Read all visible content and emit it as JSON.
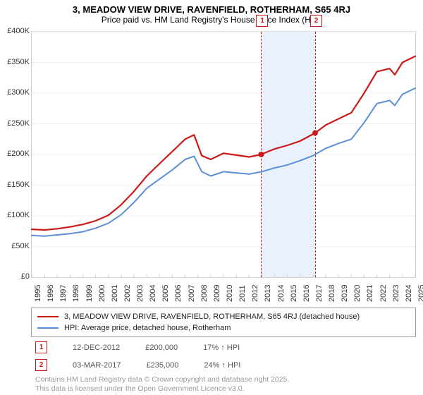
{
  "header": {
    "title": "3, MEADOW VIEW DRIVE, RAVENFIELD, ROTHERHAM, S65 4RJ",
    "subtitle": "Price paid vs. HM Land Registry's House Price Index (HPI)"
  },
  "chart": {
    "type": "line",
    "background_color": "#ffffff",
    "grid_color": "#cfcfcf",
    "plot_border_color": "#cfcfcf",
    "axis_font_size": 11,
    "axis_font_color": "#333333",
    "title_fontsize": 13,
    "subtitle_fontsize": 12,
    "ylim": [
      0,
      400000
    ],
    "ytick_step": 50000,
    "y_ticks": [
      "£0",
      "£50K",
      "£100K",
      "£150K",
      "£200K",
      "£250K",
      "£300K",
      "£350K",
      "£400K"
    ],
    "xlim": [
      1995,
      2025
    ],
    "xtick_step": 1,
    "x_ticks": [
      "1995",
      "1996",
      "1997",
      "1998",
      "1999",
      "2000",
      "2001",
      "2002",
      "2003",
      "2004",
      "2005",
      "2006",
      "2007",
      "2008",
      "2009",
      "2010",
      "2011",
      "2012",
      "2013",
      "2014",
      "2015",
      "2016",
      "2017",
      "2018",
      "2019",
      "2020",
      "2021",
      "2022",
      "2023",
      "2024",
      "2025"
    ],
    "series": [
      {
        "key": "price_paid",
        "label": "3, MEADOW VIEW DRIVE, RAVENFIELD, ROTHERHAM, S65 4RJ (detached house)",
        "color": "#cc1a1a",
        "line_width": 2.2,
        "data": [
          [
            1995,
            78000
          ],
          [
            1996,
            77000
          ],
          [
            1997,
            79000
          ],
          [
            1998,
            82000
          ],
          [
            1999,
            86000
          ],
          [
            2000,
            92000
          ],
          [
            2001,
            101000
          ],
          [
            2002,
            118000
          ],
          [
            2003,
            140000
          ],
          [
            2004,
            165000
          ],
          [
            2005,
            185000
          ],
          [
            2006,
            205000
          ],
          [
            2007,
            225000
          ],
          [
            2007.7,
            232000
          ],
          [
            2008.3,
            198000
          ],
          [
            2009,
            192000
          ],
          [
            2010,
            202000
          ],
          [
            2011,
            199000
          ],
          [
            2012,
            196000
          ],
          [
            2012.95,
            200000
          ],
          [
            2013.5,
            205000
          ],
          [
            2014,
            209000
          ],
          [
            2015,
            215000
          ],
          [
            2016,
            222000
          ],
          [
            2017.17,
            235000
          ],
          [
            2018,
            248000
          ],
          [
            2019,
            258000
          ],
          [
            2020,
            268000
          ],
          [
            2021,
            300000
          ],
          [
            2022,
            335000
          ],
          [
            2023,
            340000
          ],
          [
            2023.4,
            330000
          ],
          [
            2024,
            350000
          ],
          [
            2025,
            360000
          ]
        ]
      },
      {
        "key": "hpi",
        "label": "HPI: Average price, detached house, Rotherham",
        "color": "#5b8fd6",
        "line_width": 2,
        "data": [
          [
            1995,
            68000
          ],
          [
            1996,
            67000
          ],
          [
            1997,
            69000
          ],
          [
            1998,
            71000
          ],
          [
            1999,
            74000
          ],
          [
            2000,
            80000
          ],
          [
            2001,
            88000
          ],
          [
            2002,
            102000
          ],
          [
            2003,
            122000
          ],
          [
            2004,
            145000
          ],
          [
            2005,
            160000
          ],
          [
            2006,
            175000
          ],
          [
            2007,
            192000
          ],
          [
            2007.7,
            197000
          ],
          [
            2008.3,
            172000
          ],
          [
            2009,
            165000
          ],
          [
            2010,
            172000
          ],
          [
            2011,
            170000
          ],
          [
            2012,
            168000
          ],
          [
            2013,
            172000
          ],
          [
            2014,
            178000
          ],
          [
            2015,
            183000
          ],
          [
            2016,
            190000
          ],
          [
            2017,
            198000
          ],
          [
            2018,
            210000
          ],
          [
            2019,
            218000
          ],
          [
            2020,
            225000
          ],
          [
            2021,
            252000
          ],
          [
            2022,
            283000
          ],
          [
            2023,
            288000
          ],
          [
            2023.4,
            280000
          ],
          [
            2024,
            298000
          ],
          [
            2025,
            308000
          ]
        ]
      }
    ],
    "markers": [
      {
        "series": "price_paid",
        "x": 2012.95,
        "y": 200000,
        "color": "#cc1a1a",
        "radius": 4
      },
      {
        "series": "price_paid",
        "x": 2017.17,
        "y": 235000,
        "color": "#cc1a1a",
        "radius": 4
      }
    ],
    "plot_bands": [
      {
        "from": 2012.95,
        "to": 2017.17,
        "fill": "#e9f1fc"
      }
    ],
    "plot_lines": [
      {
        "x": 2012.95,
        "color": "#cc1a1a",
        "dash": "3,3",
        "badge": "1"
      },
      {
        "x": 2017.17,
        "color": "#cc1a1a",
        "dash": "3,3",
        "badge": "2"
      }
    ]
  },
  "legend": {
    "border_color": "#a0a0a0",
    "font_size": 11,
    "items": [
      {
        "color": "#cc1a1a",
        "label_key": "chart.series.0.label"
      },
      {
        "color": "#5b8fd6",
        "label_key": "chart.series.1.label"
      }
    ]
  },
  "annotations": {
    "font_size": 11,
    "text_color": "#555555",
    "rows": [
      {
        "badge": "1",
        "date": "12-DEC-2012",
        "price": "£200,000",
        "delta": "17% ↑ HPI"
      },
      {
        "badge": "2",
        "date": "03-MAR-2017",
        "price": "£235,000",
        "delta": "24% ↑ HPI"
      }
    ]
  },
  "footer": {
    "line1": "Contains HM Land Registry data © Crown copyright and database right 2025.",
    "line2": "This data is licensed under the Open Government Licence v3.0.",
    "color": "#9a9a9a",
    "font_size": 10.5
  }
}
